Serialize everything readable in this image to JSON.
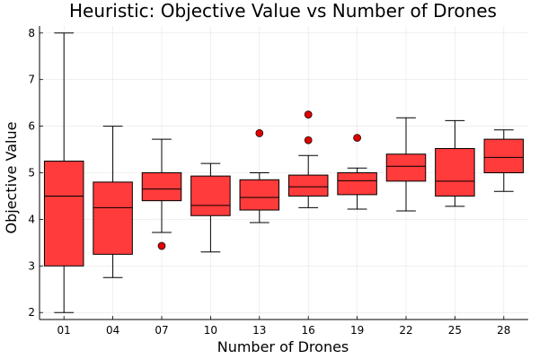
{
  "chart_data": {
    "type": "box",
    "title": "Heuristic: Objective Value vs Number of Drones",
    "xlabel": "Number of Drones",
    "ylabel": "Objective Value",
    "ylim": [
      1.85,
      8.15
    ],
    "yticks": [
      "2",
      "3",
      "4",
      "5",
      "6",
      "7",
      "8"
    ],
    "grid": true,
    "legend": "none",
    "box_color": "#ff3b3b",
    "outline_color": "#000000",
    "categories": [
      "01",
      "04",
      "07",
      "10",
      "13",
      "16",
      "19",
      "22",
      "25",
      "28"
    ],
    "boxes": [
      {
        "min": 2.0,
        "q1": 3.0,
        "median": 4.5,
        "q3": 5.25,
        "max": 8.0,
        "outliers": []
      },
      {
        "min": 2.75,
        "q1": 3.25,
        "median": 4.25,
        "q3": 4.8,
        "max": 6.0,
        "outliers": []
      },
      {
        "min": 3.72,
        "q1": 4.4,
        "median": 4.65,
        "q3": 5.0,
        "max": 5.72,
        "outliers": [
          3.43
        ]
      },
      {
        "min": 3.3,
        "q1": 4.08,
        "median": 4.3,
        "q3": 4.93,
        "max": 5.2,
        "outliers": []
      },
      {
        "min": 3.93,
        "q1": 4.2,
        "median": 4.47,
        "q3": 4.85,
        "max": 5.0,
        "outliers": [
          5.85
        ]
      },
      {
        "min": 4.25,
        "q1": 4.5,
        "median": 4.7,
        "q3": 4.95,
        "max": 5.37,
        "outliers": [
          6.25,
          5.7
        ]
      },
      {
        "min": 4.22,
        "q1": 4.53,
        "median": 4.83,
        "q3": 5.0,
        "max": 5.1,
        "outliers": [
          5.75
        ]
      },
      {
        "min": 4.18,
        "q1": 4.82,
        "median": 5.14,
        "q3": 5.4,
        "max": 6.18,
        "outliers": []
      },
      {
        "min": 4.28,
        "q1": 4.5,
        "median": 4.82,
        "q3": 5.52,
        "max": 6.12,
        "outliers": []
      },
      {
        "min": 4.6,
        "q1": 5.0,
        "median": 5.33,
        "q3": 5.72,
        "max": 5.92,
        "outliers": []
      }
    ]
  }
}
